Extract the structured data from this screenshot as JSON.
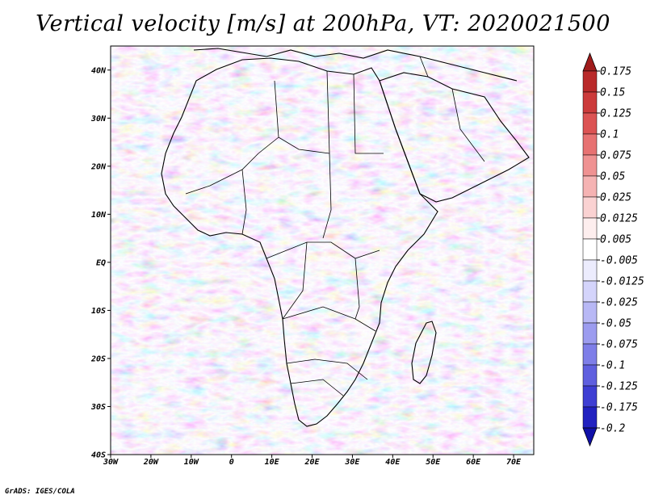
{
  "title": "Vertical velocity [m/s] at 200hPa, VT: 2020021500",
  "credit": "GrADS: IGES/COLA",
  "map": {
    "lon_range": [
      -30,
      75
    ],
    "lat_range": [
      -40,
      45
    ],
    "lat_ticks": [
      {
        "value": 40,
        "label": "40N"
      },
      {
        "value": 30,
        "label": "30N"
      },
      {
        "value": 20,
        "label": "20N"
      },
      {
        "value": 10,
        "label": "10N"
      },
      {
        "value": 0,
        "label": "EQ"
      },
      {
        "value": -10,
        "label": "10S"
      },
      {
        "value": -20,
        "label": "20S"
      },
      {
        "value": -30,
        "label": "30S"
      },
      {
        "value": -40,
        "label": "40S"
      }
    ],
    "lon_ticks": [
      {
        "value": -30,
        "label": "30W"
      },
      {
        "value": -20,
        "label": "20W"
      },
      {
        "value": -10,
        "label": "10W"
      },
      {
        "value": 0,
        "label": "0"
      },
      {
        "value": 10,
        "label": "10E"
      },
      {
        "value": 20,
        "label": "20E"
      },
      {
        "value": 30,
        "label": "30E"
      },
      {
        "value": 40,
        "label": "40E"
      },
      {
        "value": 50,
        "label": "50E"
      },
      {
        "value": 60,
        "label": "60E"
      },
      {
        "value": 70,
        "label": "70E"
      }
    ]
  },
  "colorbar": {
    "levels": [
      "0.175",
      "0.15",
      "0.125",
      "0.1",
      "0.075",
      "0.05",
      "0.025",
      "0.0125",
      "0.005",
      "-0.005",
      "-0.0125",
      "-0.025",
      "-0.05",
      "-0.075",
      "-0.1",
      "-0.125",
      "-0.175",
      "-0.2"
    ],
    "colors": [
      "#a01c1c",
      "#b92a2a",
      "#cc3b3b",
      "#dc5353",
      "#e77272",
      "#ef9292",
      "#f5b3b3",
      "#fad2d2",
      "#fdeeee",
      "#ffffff",
      "#ececfd",
      "#d4d4fb",
      "#b8b8f5",
      "#9c9cef",
      "#7e7ee8",
      "#5f5fdf",
      "#3e3ed3",
      "#2121c0",
      "#1010a8"
    ]
  }
}
